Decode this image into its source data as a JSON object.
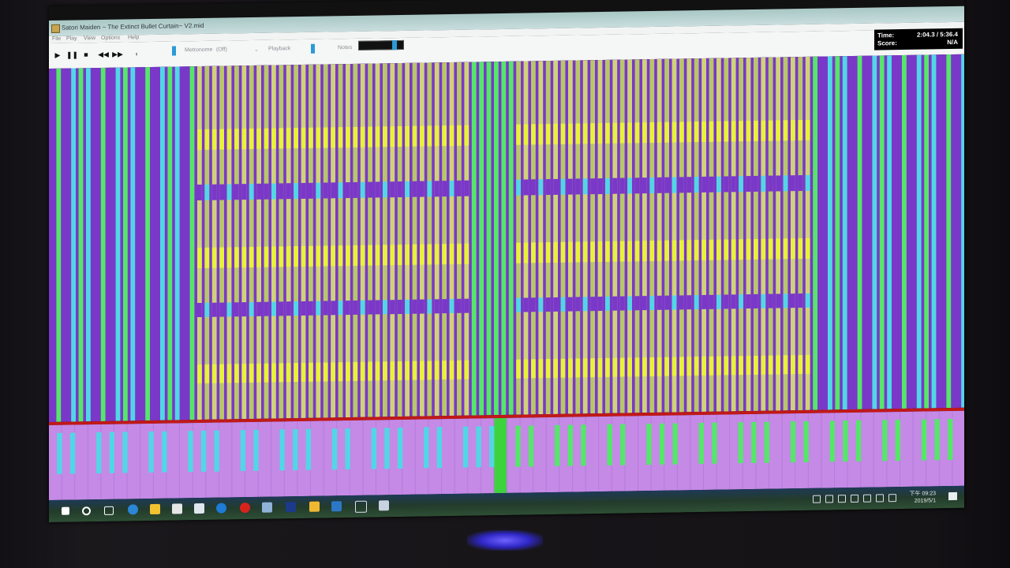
{
  "window": {
    "title": "Satori Maiden ~ The Extinct Bullet Curtain~ V2.mid"
  },
  "menu": {
    "items": [
      "File",
      "Play",
      "View",
      "Options",
      "Help"
    ]
  },
  "toolbar": {
    "metronome_label": "Metronome",
    "metronome_value": "(Off)",
    "playback_label": "Playback",
    "notes_label": "Notes"
  },
  "hud": {
    "time_label": "Time:",
    "time_value": "2:04.3 / 5:36.4",
    "score_label": "Score:",
    "score_value": "N/A"
  },
  "taskbar": {
    "clock_time": "下午 09:23",
    "clock_date": "2019/5/1"
  },
  "icons": {
    "play": "play-icon",
    "pause": "pause-icon",
    "stop": "stop-icon",
    "rewind": "rewind-icon",
    "fast_forward": "fast-forward-icon",
    "volume": "volume-icon"
  },
  "colors": {
    "note_purple": "#7a38c8",
    "note_cyan": "#52d6e6",
    "note_green": "#55e66a",
    "note_yellow": "#e8f23a",
    "note_olive": "#b8c66a",
    "hit_line": "#c11818",
    "key_highlight": "#3fd23f"
  }
}
